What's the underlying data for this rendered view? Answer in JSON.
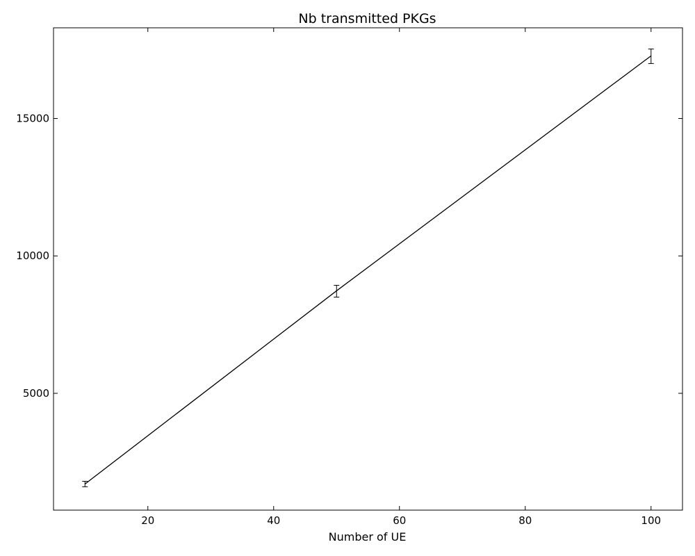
{
  "chart_data": {
    "type": "line",
    "title": "Nb transmitted PKGs",
    "xlabel": "Number of UE",
    "ylabel": "",
    "xlim": [
      5,
      105
    ],
    "ylim": [
      750,
      18300
    ],
    "x_ticks": [
      20,
      40,
      60,
      80,
      100
    ],
    "y_ticks": [
      5000,
      10000,
      15000
    ],
    "grid": false,
    "series": [
      {
        "color": "#000000",
        "points": [
          {
            "x": 10,
            "y": 1700,
            "err_low": 1600,
            "err_high": 1800
          },
          {
            "x": 50,
            "y": 8730,
            "err_low": 8500,
            "err_high": 8930
          },
          {
            "x": 100,
            "y": 17280,
            "err_low": 17000,
            "err_high": 17530
          }
        ]
      }
    ]
  }
}
